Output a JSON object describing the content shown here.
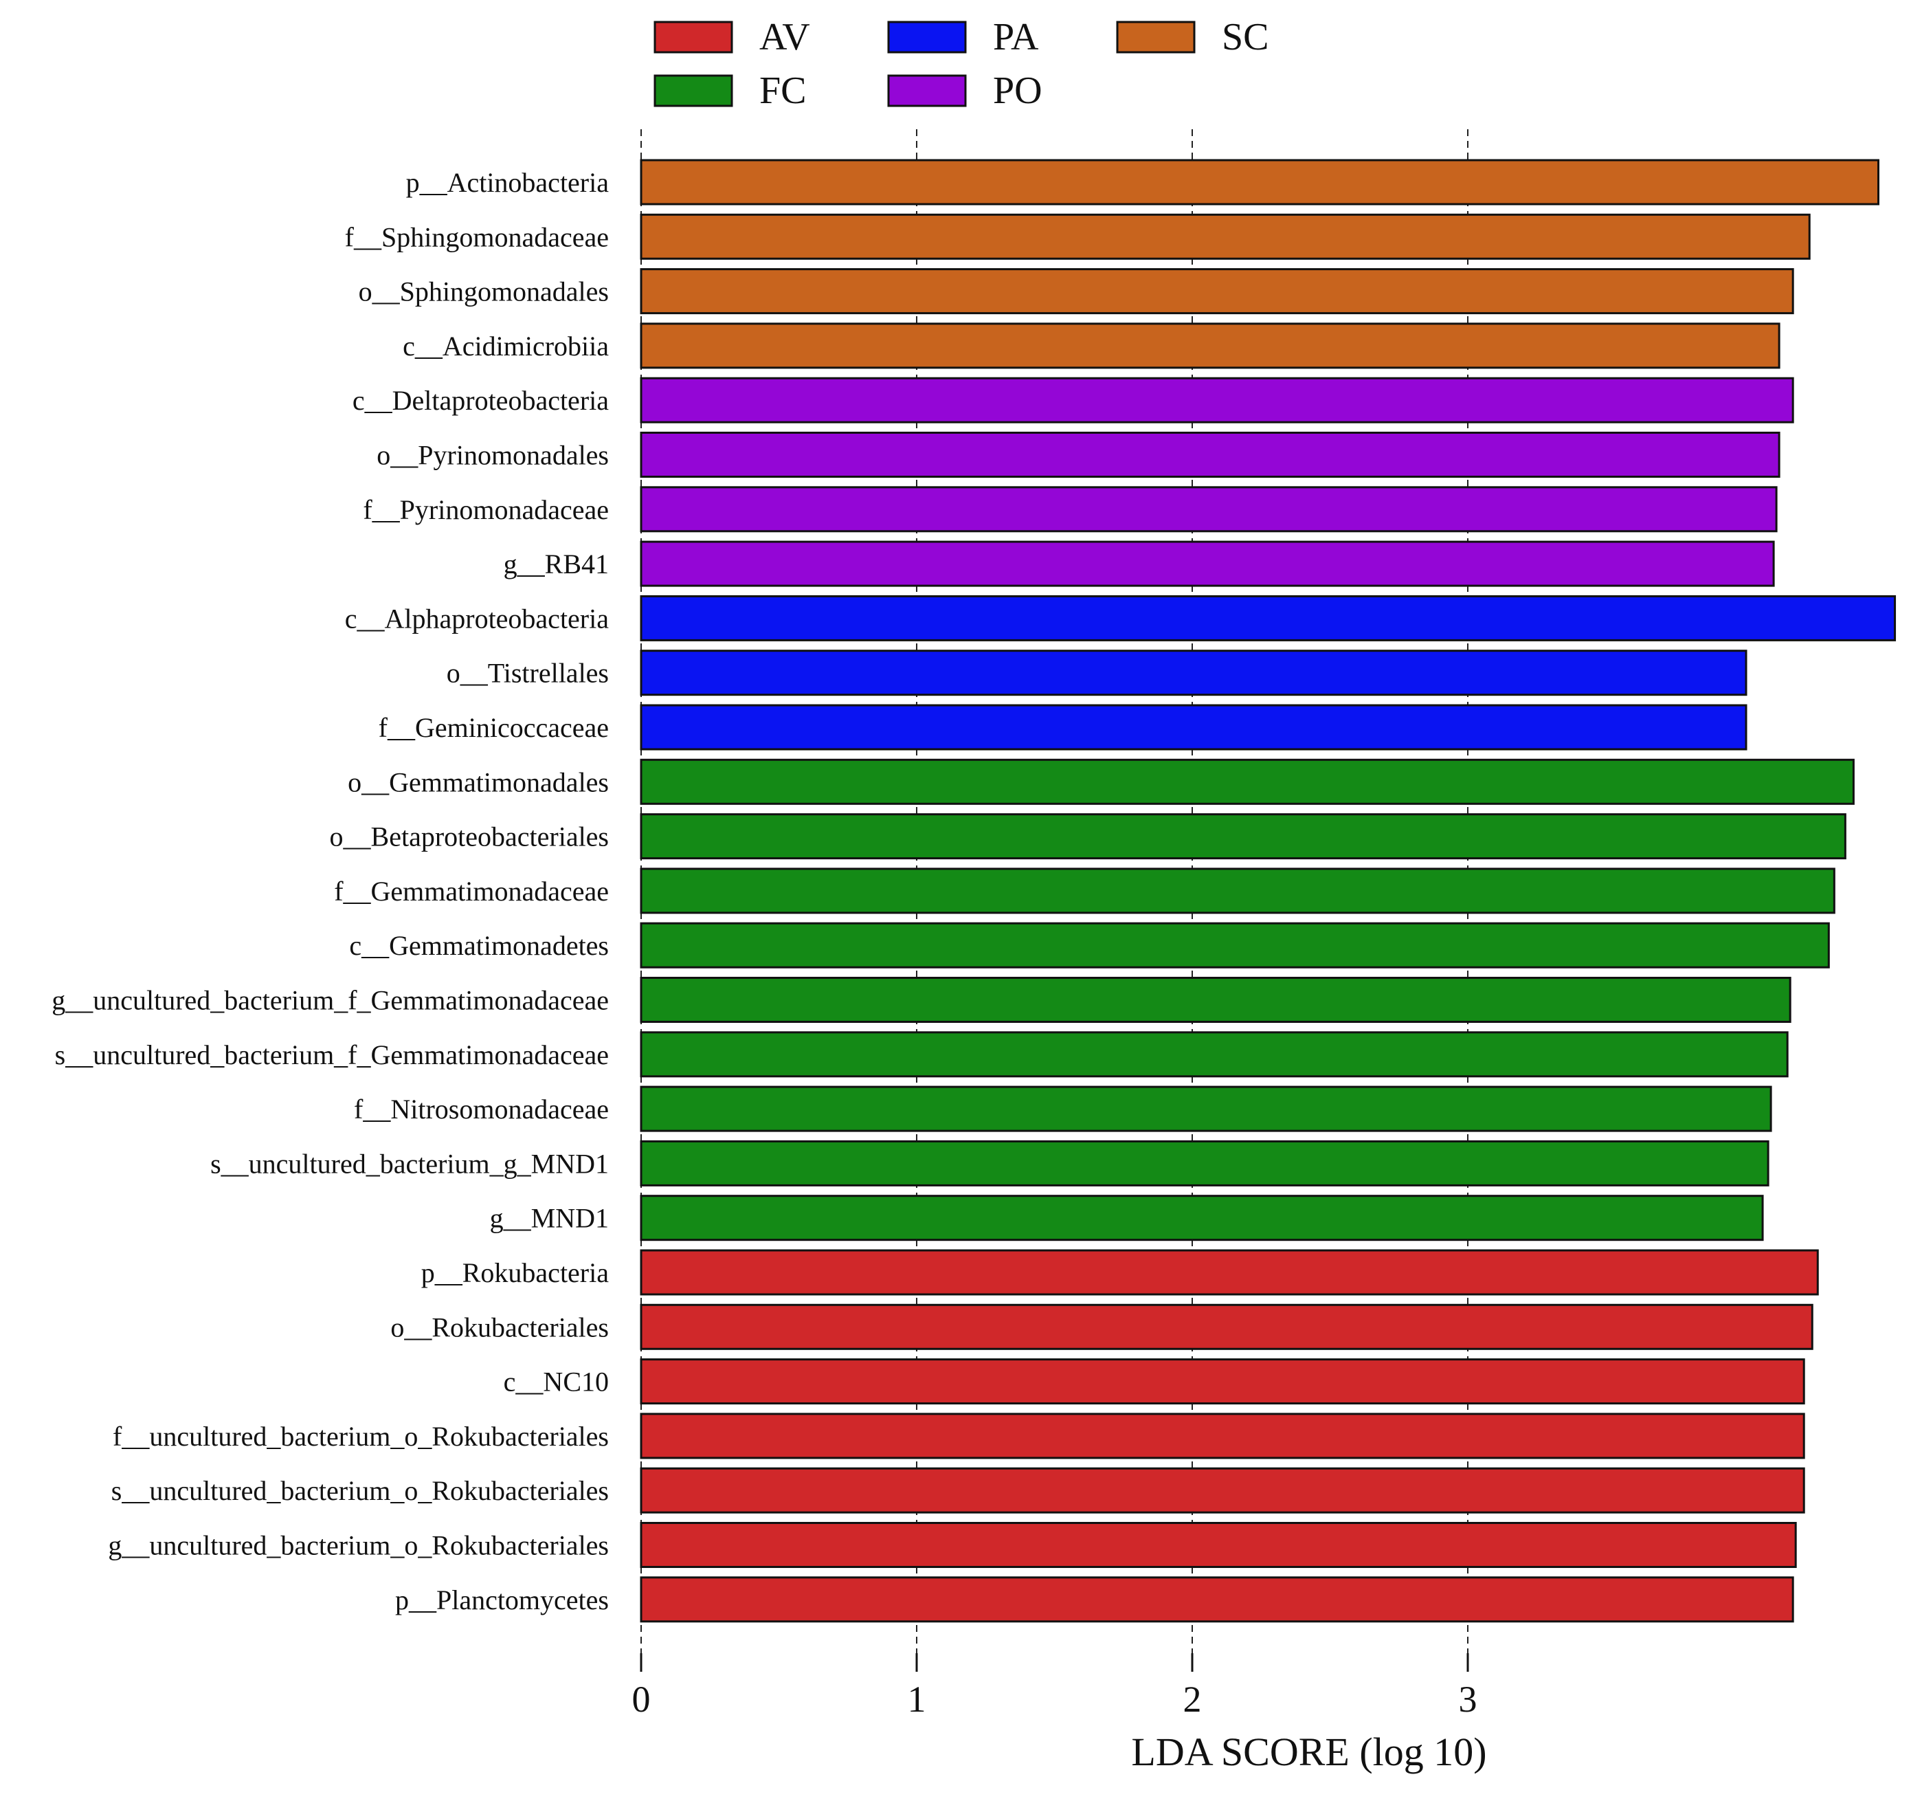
{
  "chart_data": {
    "type": "bar",
    "orientation": "horizontal",
    "title": "",
    "xlabel": "LDA SCORE (log 10)",
    "ylabel": "",
    "xlim": [
      0,
      4.55
    ],
    "xticks": [
      "0",
      "1",
      "2",
      "3"
    ],
    "grid": "vertical dashed lines at 0, 1, 2, 3",
    "legend_position": "top",
    "groups": [
      {
        "name": "AV",
        "color": "#d0282a"
      },
      {
        "name": "PA",
        "color": "#0a14f2"
      },
      {
        "name": "SC",
        "color": "#c8641e"
      },
      {
        "name": "FC",
        "color": "#148a16"
      },
      {
        "name": "PO",
        "color": "#9406d6"
      }
    ],
    "categories": [
      "p__Actinobacteria",
      "f__Sphingomonadaceae",
      "o__Sphingomonadales",
      "c__Acidimicrobiia",
      "c__Deltaproteobacteria",
      "o__Pyrinomonadales",
      "f__Pyrinomonadaceae",
      "g__RB41",
      "c__Alphaproteobacteria",
      "o__Tistrellales",
      "f__Geminicoccaceae",
      "o__Gemmatimonadales",
      "o__Betaproteobacteriales",
      "f__Gemmatimonadaceae",
      "c__Gemmatimonadetes",
      "g__uncultured_bacterium_f_Gemmatimonadaceae",
      "s__uncultured_bacterium_f_Gemmatimonadaceae",
      "f__Nitrosomonadaceae",
      "s__uncultured_bacterium_g_MND1",
      "g__MND1",
      "p__Rokubacteria",
      "o__Rokubacteriales",
      "c__NC10",
      "f__uncultured_bacterium_o_Rokubacteriales",
      "s__uncultured_bacterium_o_Rokubacteriales",
      "g__uncultured_bacterium_o_Rokubacteriales",
      "p__Planctomycetes"
    ],
    "values": [
      4.49,
      4.24,
      4.18,
      4.13,
      4.18,
      4.13,
      4.12,
      4.11,
      4.55,
      4.01,
      4.01,
      4.4,
      4.37,
      4.33,
      4.31,
      4.17,
      4.16,
      4.1,
      4.09,
      4.07,
      4.27,
      4.25,
      4.22,
      4.22,
      4.22,
      4.19,
      4.18
    ],
    "bar_groups": [
      "SC",
      "SC",
      "SC",
      "SC",
      "PO",
      "PO",
      "PO",
      "PO",
      "PA",
      "PA",
      "PA",
      "FC",
      "FC",
      "FC",
      "FC",
      "FC",
      "FC",
      "FC",
      "FC",
      "FC",
      "AV",
      "AV",
      "AV",
      "AV",
      "AV",
      "AV",
      "AV"
    ]
  }
}
